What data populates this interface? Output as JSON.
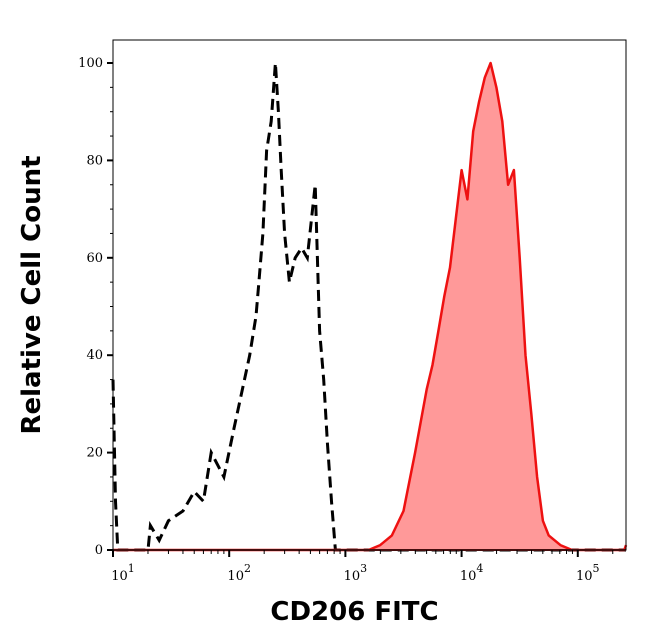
{
  "chart_data": {
    "type": "area",
    "title": "",
    "xlabel": "CD206 FITC",
    "ylabel": "Relative Cell Count",
    "xscale": "log",
    "xlim": [
      10,
      260000
    ],
    "ylim": [
      0,
      100
    ],
    "x_ticks": [
      {
        "base": "10",
        "exp": "1",
        "value": 10
      },
      {
        "base": "10",
        "exp": "2",
        "value": 100
      },
      {
        "base": "10",
        "exp": "3",
        "value": 1000
      },
      {
        "base": "10",
        "exp": "4",
        "value": 10000
      },
      {
        "base": "10",
        "exp": "5",
        "value": 100000
      }
    ],
    "y_ticks": [
      0,
      20,
      40,
      60,
      80,
      100
    ],
    "grid": false,
    "legend": "none",
    "series": [
      {
        "style": "dashed-line",
        "color": "#000000",
        "x": [
          10,
          10.5,
          11,
          20,
          21,
          25,
          30,
          40,
          50,
          60,
          70,
          90,
          110,
          130,
          150,
          170,
          180,
          195,
          210,
          230,
          250,
          265,
          280,
          300,
          330,
          370,
          420,
          470,
          550,
          600,
          650,
          700,
          760,
          820,
          300000
        ],
        "y": [
          35,
          10,
          0,
          0,
          5,
          2,
          6,
          8,
          12,
          10,
          20,
          15,
          25,
          33,
          40,
          48,
          55,
          65,
          82,
          88,
          100,
          90,
          78,
          65,
          55,
          60,
          62,
          60,
          75,
          45,
          35,
          22,
          10,
          0,
          0
        ]
      },
      {
        "style": "filled-area",
        "color": "#ee1111",
        "fill": "#ff9999",
        "x": [
          10,
          1585,
          1995,
          2512,
          3162,
          3981,
          5012,
          5623,
          6310,
          7079,
          7943,
          8913,
          10000,
          11220,
          12589,
          14125,
          15849,
          17783,
          19953,
          22387,
          25119,
          28184,
          31623,
          35481,
          39811,
          44668,
          50119,
          56234,
          70795,
          89125,
          251189,
          260000
        ],
        "y": [
          0,
          0,
          1,
          3,
          8,
          20,
          33,
          38,
          45,
          52,
          58,
          68,
          78,
          72,
          86,
          92,
          97,
          100,
          95,
          88,
          75,
          78,
          60,
          40,
          28,
          15,
          6,
          3,
          1,
          0,
          0,
          1
        ]
      }
    ]
  }
}
